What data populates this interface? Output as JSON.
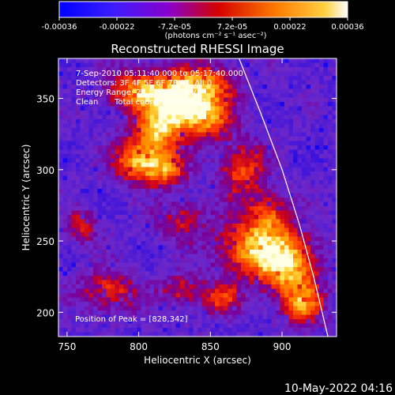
{
  "colorbar": {
    "ticks": [
      "-0.00036",
      "-0.00022",
      "-7.2e-05",
      "7.2e-05",
      "0.00022",
      "0.00036"
    ],
    "unit_label": "(photons cm⁻² s⁻¹ asec⁻²)"
  },
  "chart_data": {
    "type": "heatmap",
    "title": "Reconstructed RHESSI Image",
    "xlabel": "Heliocentric X (arcsec)",
    "ylabel": "Heliocentric Y (arcsec)",
    "xlim": [
      744,
      938
    ],
    "ylim": [
      183,
      378
    ],
    "x_ticks": [
      750,
      800,
      850,
      900
    ],
    "y_ticks": [
      200,
      250,
      300,
      350
    ],
    "grid": false,
    "color_range": [
      -0.00036,
      0.00036
    ],
    "annotations": {
      "line1": "7-Sep-2010 05:11:40.000 to 05:17:40.000",
      "line2": "Detectors: 3F 4F 5F 6F 7F 8F, All 0",
      "line3": "Energy Range: 25.0 - 50.0 keV",
      "line4_left": "Clean",
      "line4_right": "Total counts: 7.21E+03",
      "peak": "Position of Peak = [828,342]"
    },
    "peak_position": [
      828,
      342
    ],
    "limb_curve": [
      [
        870,
        378
      ],
      [
        885,
        340
      ],
      [
        900,
        300
      ],
      [
        912,
        262
      ],
      [
        922,
        225
      ],
      [
        932,
        183
      ]
    ],
    "blobs": [
      {
        "x": 829,
        "y": 345,
        "sx": 14,
        "sy": 12,
        "a": 1.0
      },
      {
        "x": 800,
        "y": 355,
        "sx": 16,
        "sy": 10,
        "a": 0.75
      },
      {
        "x": 845,
        "y": 360,
        "sx": 16,
        "sy": 10,
        "a": 0.65
      },
      {
        "x": 812,
        "y": 325,
        "sx": 12,
        "sy": 10,
        "a": 0.7
      },
      {
        "x": 850,
        "y": 335,
        "sx": 12,
        "sy": 10,
        "a": 0.55
      },
      {
        "x": 800,
        "y": 305,
        "sx": 12,
        "sy": 10,
        "a": 0.8
      },
      {
        "x": 820,
        "y": 300,
        "sx": 10,
        "sy": 8,
        "a": 0.6
      },
      {
        "x": 872,
        "y": 300,
        "sx": 12,
        "sy": 14,
        "a": 0.55
      },
      {
        "x": 890,
        "y": 270,
        "sx": 10,
        "sy": 10,
        "a": 0.5
      },
      {
        "x": 884,
        "y": 245,
        "sx": 20,
        "sy": 14,
        "a": 0.85
      },
      {
        "x": 905,
        "y": 230,
        "sx": 14,
        "sy": 14,
        "a": 0.7
      },
      {
        "x": 915,
        "y": 205,
        "sx": 10,
        "sy": 10,
        "a": 0.65
      },
      {
        "x": 780,
        "y": 215,
        "sx": 14,
        "sy": 10,
        "a": 0.55
      },
      {
        "x": 830,
        "y": 215,
        "sx": 10,
        "sy": 8,
        "a": 0.45
      },
      {
        "x": 858,
        "y": 210,
        "sx": 10,
        "sy": 8,
        "a": 0.5
      },
      {
        "x": 830,
        "y": 265,
        "sx": 12,
        "sy": 10,
        "a": 0.4
      },
      {
        "x": 760,
        "y": 260,
        "sx": 8,
        "sy": 8,
        "a": 0.45
      }
    ]
  },
  "footer": {
    "timestamp": "10-May-2022 04:16"
  }
}
